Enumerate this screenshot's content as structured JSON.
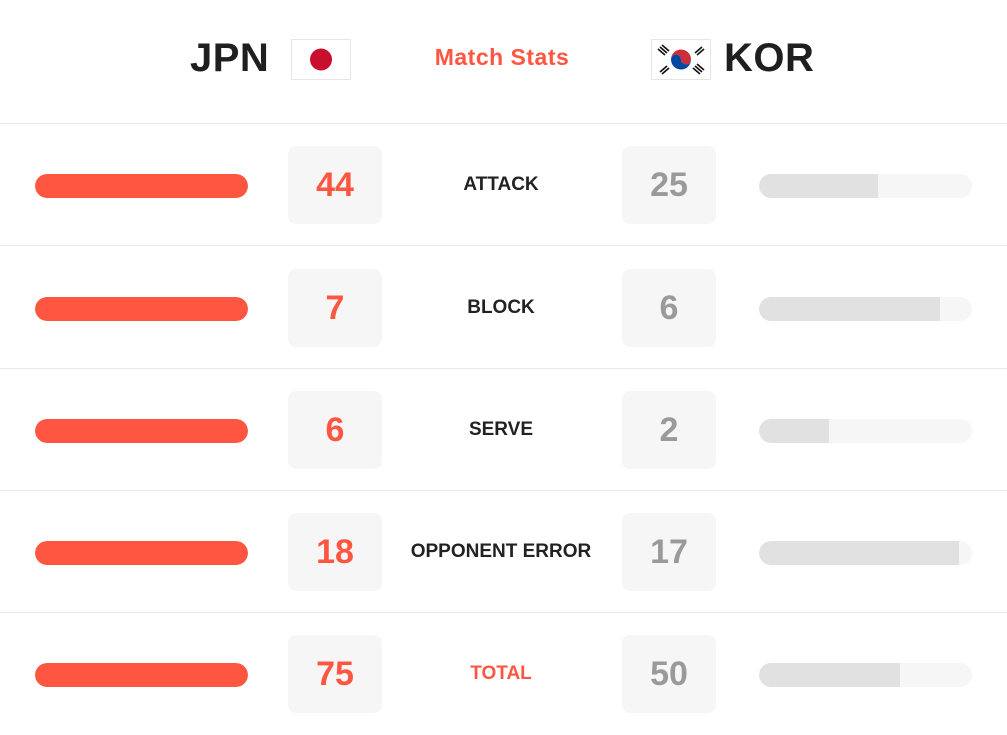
{
  "header": {
    "home_team": "JPN",
    "away_team": "KOR",
    "title": "Match Stats",
    "home_flag_icon": "japan-flag-icon",
    "away_flag_icon": "south-korea-flag-icon"
  },
  "colors": {
    "accent": "#ff5641",
    "away_value": "#9a9a9a",
    "away_bar": "#e1e1e1",
    "track": "#f6f6f6"
  },
  "stats": [
    {
      "label": "ATTACK",
      "home": "44",
      "away": "25",
      "home_share": 1.0,
      "away_share": 0.56
    },
    {
      "label": "BLOCK",
      "home": "7",
      "away": "6",
      "home_share": 1.0,
      "away_share": 0.85
    },
    {
      "label": "SERVE",
      "home": "6",
      "away": "2",
      "home_share": 1.0,
      "away_share": 0.33
    },
    {
      "label": "OPPONENT ERROR",
      "home": "18",
      "away": "17",
      "home_share": 1.0,
      "away_share": 0.94
    },
    {
      "label": "TOTAL",
      "home": "75",
      "away": "50",
      "home_share": 1.0,
      "away_share": 0.66
    }
  ]
}
